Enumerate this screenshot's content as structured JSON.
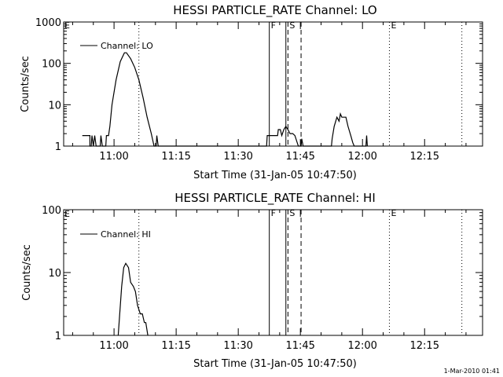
{
  "chart_data": [
    {
      "type": "line",
      "title": "HESSI PARTICLE_RATE Channel: LO",
      "xlabel": "Start Time (31-Jan-05 10:47:50)",
      "ylabel": "Counts/sec",
      "yscale": "log",
      "ylim": [
        1,
        1000
      ],
      "xlim": [
        "10:47:50",
        "12:29:00"
      ],
      "x_ticks": [
        "11:00",
        "11:15",
        "11:30",
        "11:45",
        "12:00",
        "12:15"
      ],
      "y_ticks": [
        "1",
        "10",
        "100",
        "1000"
      ],
      "legend": {
        "entries": [
          "Channel: LO"
        ],
        "placement": "top-left"
      },
      "markers": [
        {
          "label": "F",
          "time": "11:37:30",
          "style": "solid"
        },
        {
          "label": "",
          "time": "11:41:30",
          "style": "solid"
        },
        {
          "label": "S",
          "time": "11:42:00",
          "style": "dashed"
        },
        {
          "label": "",
          "time": "11:45:10",
          "style": "dashed"
        },
        {
          "label": "E",
          "time": "12:06:30",
          "style": "dotted"
        },
        {
          "label": "",
          "time": "11:06:00",
          "style": "dotted"
        },
        {
          "label": "",
          "time": "12:24:00",
          "style": "dotted"
        }
      ],
      "series": [
        {
          "name": "Channel: LO",
          "points": [
            [
              "10:52:20",
              1.8
            ],
            [
              "10:54:10",
              1.8
            ],
            [
              "10:54:10",
              1
            ],
            [
              "10:54:30",
              1
            ],
            [
              "10:54:40",
              1.8
            ],
            [
              "10:55:00",
              1
            ],
            [
              "10:55:20",
              1.8
            ],
            [
              "10:55:40",
              1
            ],
            [
              "10:56:40",
              1
            ],
            [
              "10:56:50",
              1.8
            ],
            [
              "10:57:10",
              1
            ],
            [
              "10:58:00",
              1
            ],
            [
              "10:58:10",
              1.8
            ],
            [
              "10:58:40",
              1.8
            ],
            [
              "10:59:00",
              3
            ],
            [
              "10:59:30",
              10
            ],
            [
              "11:00:30",
              40
            ],
            [
              "11:01:30",
              110
            ],
            [
              "11:02:30",
              180
            ],
            [
              "11:03:00",
              180
            ],
            [
              "11:04:00",
              130
            ],
            [
              "11:05:00",
              80
            ],
            [
              "11:06:00",
              40
            ],
            [
              "11:07:00",
              15
            ],
            [
              "11:08:00",
              5
            ],
            [
              "11:09:00",
              2
            ],
            [
              "11:09:40",
              1
            ],
            [
              "11:10:10",
              1
            ],
            [
              "11:10:20",
              1.8
            ],
            [
              "11:10:40",
              1
            ],
            [
              "11:36:50",
              1
            ],
            [
              "11:37:00",
              1.8
            ],
            [
              "11:39:30",
              1.8
            ],
            [
              "11:39:40",
              2.5
            ],
            [
              "11:40:10",
              2.5
            ],
            [
              "11:40:30",
              1.8
            ],
            [
              "11:41:00",
              2.5
            ],
            [
              "11:41:30",
              3
            ],
            [
              "11:42:00",
              2.5
            ],
            [
              "11:42:30",
              2
            ],
            [
              "11:43:10",
              2
            ],
            [
              "11:43:40",
              1.8
            ],
            [
              "11:44:30",
              1
            ],
            [
              "11:45:10",
              1
            ],
            [
              "11:45:20",
              1.5
            ],
            [
              "11:45:40",
              1
            ],
            [
              "11:52:30",
              1
            ],
            [
              "11:52:40",
              1.5
            ],
            [
              "11:53:10",
              3
            ],
            [
              "11:53:50",
              5
            ],
            [
              "11:54:20",
              4
            ],
            [
              "11:54:40",
              6
            ],
            [
              "11:55:00",
              5
            ],
            [
              "11:56:00",
              5
            ],
            [
              "11:56:30",
              3
            ],
            [
              "11:57:10",
              1.8
            ],
            [
              "11:57:40",
              1.2
            ],
            [
              "11:58:00",
              1
            ],
            [
              "12:00:50",
              1
            ],
            [
              "12:01:00",
              1.8
            ],
            [
              "12:01:10",
              1
            ]
          ]
        }
      ]
    },
    {
      "type": "line",
      "title": "HESSI PARTICLE_RATE Channel: HI",
      "xlabel": "Start Time (31-Jan-05 10:47:50)",
      "ylabel": "Counts/sec",
      "yscale": "log",
      "ylim": [
        1,
        100
      ],
      "xlim": [
        "10:47:50",
        "12:29:00"
      ],
      "x_ticks": [
        "11:00",
        "11:15",
        "11:30",
        "11:45",
        "12:00",
        "12:15"
      ],
      "y_ticks": [
        "1",
        "10",
        "100"
      ],
      "legend": {
        "entries": [
          "Channel: HI"
        ],
        "placement": "top-left"
      },
      "markers": [
        {
          "label": "F",
          "time": "11:37:30",
          "style": "solid"
        },
        {
          "label": "",
          "time": "11:41:30",
          "style": "solid"
        },
        {
          "label": "S",
          "time": "11:42:00",
          "style": "dashed"
        },
        {
          "label": "",
          "time": "11:45:10",
          "style": "dashed"
        },
        {
          "label": "E",
          "time": "12:06:30",
          "style": "dotted"
        },
        {
          "label": "",
          "time": "11:06:00",
          "style": "dotted"
        },
        {
          "label": "",
          "time": "12:24:00",
          "style": "dotted"
        }
      ],
      "series": [
        {
          "name": "Channel: HI",
          "points": [
            [
              "11:01:00",
              1
            ],
            [
              "11:01:20",
              2
            ],
            [
              "11:01:50",
              6
            ],
            [
              "11:02:20",
              12
            ],
            [
              "11:02:50",
              14
            ],
            [
              "11:03:30",
              12
            ],
            [
              "11:04:00",
              7
            ],
            [
              "11:04:40",
              6
            ],
            [
              "11:05:10",
              5
            ],
            [
              "11:05:40",
              3
            ],
            [
              "11:06:20",
              2.2
            ],
            [
              "11:06:50",
              2.2
            ],
            [
              "11:07:20",
              1.6
            ],
            [
              "11:07:40",
              1.6
            ],
            [
              "11:08:10",
              1
            ]
          ]
        }
      ]
    }
  ],
  "edge_label_left": "E",
  "stamp": "1-Mar-2010 01:41"
}
